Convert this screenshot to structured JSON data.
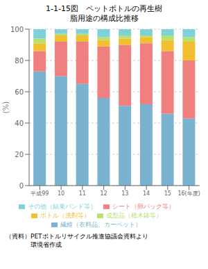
{
  "chart_data": {
    "type": "bar",
    "title": "1-1-15図　ペットボトルの再生樹\n脂用途の構成比推移",
    "categories": [
      "平成99",
      "10",
      "11",
      "12",
      "13",
      "14",
      "15",
      "16(年度)"
    ],
    "series": [
      {
        "name": "繊維（衣料品、カーペット）",
        "color": "#7ab3d0",
        "values": [
          73,
          70,
          65,
          56,
          51,
          52,
          46,
          43
        ]
      },
      {
        "name": "シート（卵パック等）",
        "color": "#f08080",
        "values": [
          13,
          22,
          27,
          33,
          39,
          39,
          40,
          37
        ]
      },
      {
        "name": "ボトル（洗剤等）",
        "color": "#f0c030",
        "values": [
          5,
          4,
          4,
          4,
          4,
          4,
          7,
          12
        ]
      },
      {
        "name": "成型品（植木鉢等）",
        "color": "#b8e070",
        "values": [
          3,
          1,
          1,
          2,
          2,
          1,
          3,
          3
        ]
      },
      {
        "name": "その他（結束バンド等）",
        "color": "#80d0d8",
        "values": [
          6,
          3,
          3,
          5,
          4,
          4,
          4,
          5
        ]
      }
    ],
    "ylabel": "(%)",
    "ylim": [
      0,
      100
    ],
    "yticks": [
      0,
      20,
      40,
      60,
      80,
      100
    ],
    "grid": true,
    "stacked": true,
    "legend": "bottom",
    "annotations": [
      "（資料）PETボトルリサイクル推進協議会資料より\n　　　　環境省作成"
    ]
  }
}
